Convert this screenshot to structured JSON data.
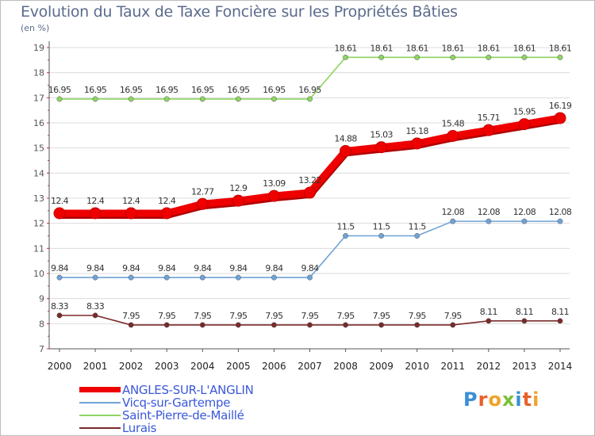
{
  "header": {
    "title": "Evolution du Taux de Taxe Foncière sur les Propriétés Bâties",
    "units": "(en %)"
  },
  "logo": {
    "text": "Proxiti",
    "letter_colors": [
      "#3a8fd6",
      "#e8612c",
      "#f0a22a",
      "#7bbf3a",
      "#3a8fd6",
      "#e8612c",
      "#f0a22a"
    ]
  },
  "colors": {
    "gridline": "#dcdcdc",
    "tick_label": "#555555",
    "axis": "#555555",
    "axis_tick": "#e83030"
  },
  "chart_data": {
    "type": "line",
    "title": "Evolution du Taux de Taxe Foncière sur les Propriétés Bâties",
    "ylabel": "(en %)",
    "xlabel": "",
    "ylim": [
      7,
      19
    ],
    "yticks": [
      7,
      8,
      9,
      10,
      11,
      12,
      13,
      14,
      15,
      16,
      17,
      18,
      19
    ],
    "grid": "horizontal",
    "legend_position": "bottom-left",
    "categories": [
      "2000",
      "2001",
      "2002",
      "2003",
      "2004",
      "2005",
      "2006",
      "2007",
      "2008",
      "2009",
      "2010",
      "2011",
      "2012",
      "2013",
      "2014"
    ],
    "series": [
      {
        "name": "ANGLES-SUR-L'ANGLIN",
        "color": "#ee0000",
        "bold": true,
        "values": [
          12.4,
          12.4,
          12.4,
          12.4,
          12.77,
          12.9,
          13.09,
          13.22,
          14.88,
          15.03,
          15.18,
          15.48,
          15.71,
          15.95,
          16.19
        ],
        "labels": [
          "12.4",
          "12.4",
          "12.4",
          "12.4",
          "12.77",
          "12.9",
          "13.09",
          "13.22",
          "14.88",
          "15.03",
          "15.18",
          "15.48",
          "15.71",
          "15.95",
          "16.19"
        ]
      },
      {
        "name": "Vicq-sur-Gartempe",
        "color": "#6fa3d8",
        "bold": false,
        "values": [
          9.84,
          9.84,
          9.84,
          9.84,
          9.84,
          9.84,
          9.84,
          9.84,
          11.5,
          11.5,
          11.5,
          12.08,
          12.08,
          12.08,
          12.08
        ],
        "labels": [
          "9.84",
          "9.84",
          "9.84",
          "9.84",
          "9.84",
          "9.84",
          "9.84",
          "9.84",
          "11.5",
          "11.5",
          "11.5",
          "12.08",
          "12.08",
          "12.08",
          "12.08"
        ]
      },
      {
        "name": "Saint-Pierre-de-Maillé",
        "color": "#8ed462",
        "bold": false,
        "values": [
          16.95,
          16.95,
          16.95,
          16.95,
          16.95,
          16.95,
          16.95,
          16.95,
          18.61,
          18.61,
          18.61,
          18.61,
          18.61,
          18.61,
          18.61
        ],
        "labels": [
          "16.95",
          "16.95",
          "16.95",
          "16.95",
          "16.95",
          "16.95",
          "16.95",
          "16.95",
          "18.61",
          "18.61",
          "18.61",
          "18.61",
          "18.61",
          "18.61",
          "18.61"
        ]
      },
      {
        "name": "Lurais",
        "color": "#7a2a2a",
        "bold": false,
        "values": [
          8.33,
          8.33,
          7.95,
          7.95,
          7.95,
          7.95,
          7.95,
          7.95,
          7.95,
          7.95,
          7.95,
          7.95,
          8.11,
          8.11,
          8.11
        ],
        "labels": [
          "8.33",
          "8.33",
          "7.95",
          "7.95",
          "7.95",
          "7.95",
          "7.95",
          "7.95",
          "7.95",
          "7.95",
          "7.95",
          "7.95",
          "8.11",
          "8.11",
          "8.11"
        ]
      }
    ]
  }
}
